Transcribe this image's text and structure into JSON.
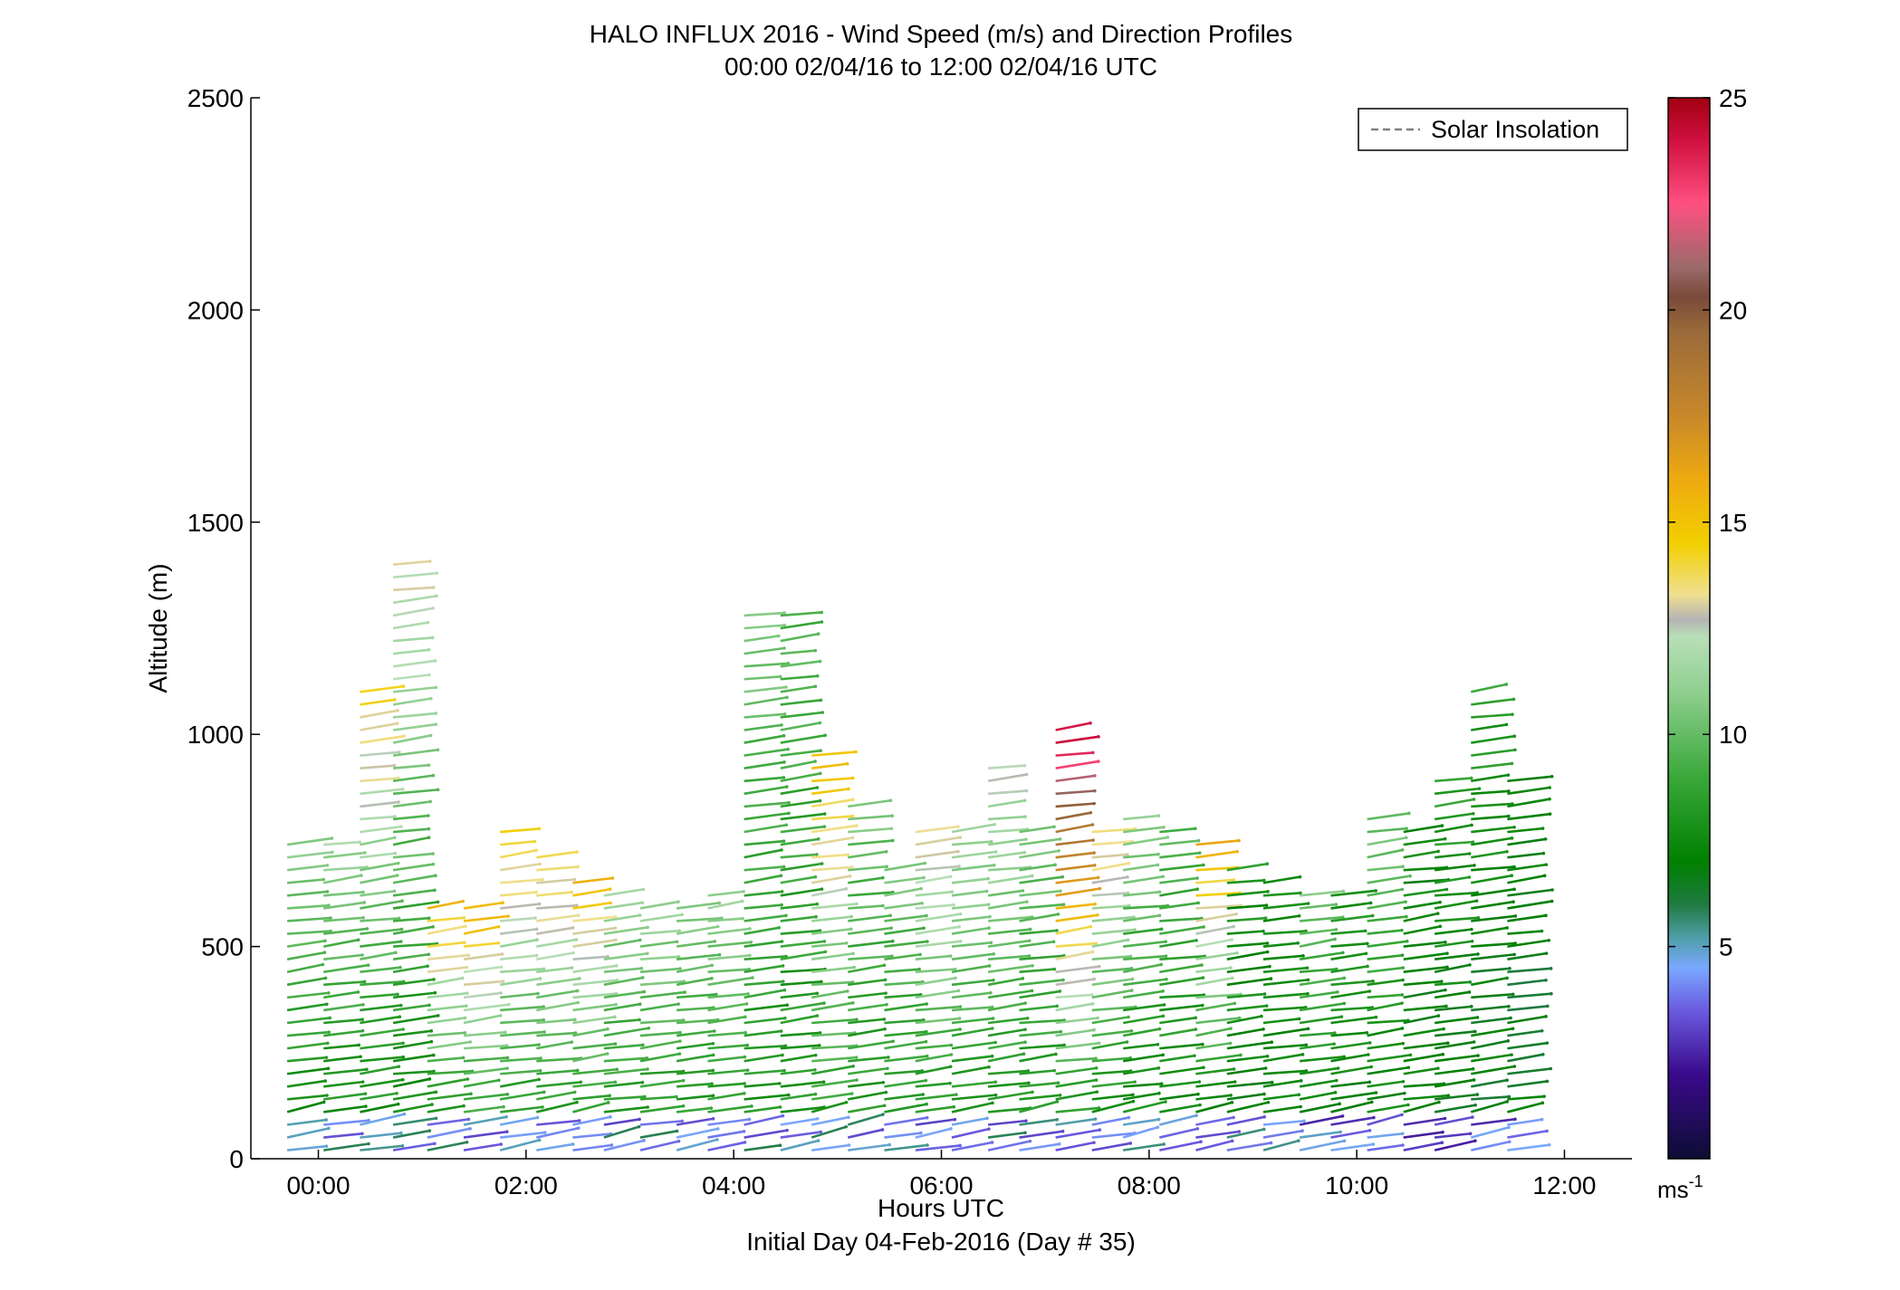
{
  "chart_data": {
    "type": "vector-profile",
    "title": "HALO INFLUX 2016 - Wind Speed (m/s) and Direction Profiles",
    "subtitle": "00:00 02/04/16 to 12:00 02/04/16  UTC",
    "xlabel": "Hours UTC",
    "xlabel2": "Initial Day 04-Feb-2016 (Day # 35)",
    "ylabel": "Altitude (m)",
    "xlim": [
      -0.65,
      12.65
    ],
    "ylim": [
      0,
      2500
    ],
    "x_ticks": [
      {
        "value": 0,
        "label": "00:00"
      },
      {
        "value": 2,
        "label": "02:00"
      },
      {
        "value": 4,
        "label": "04:00"
      },
      {
        "value": 6,
        "label": "06:00"
      },
      {
        "value": 8,
        "label": "08:00"
      },
      {
        "value": 10,
        "label": "10:00"
      },
      {
        "value": 12,
        "label": "12:00"
      }
    ],
    "y_ticks": [
      {
        "value": 0,
        "label": "0"
      },
      {
        "value": 500,
        "label": "500"
      },
      {
        "value": 1000,
        "label": "1000"
      },
      {
        "value": 1500,
        "label": "1500"
      },
      {
        "value": 2000,
        "label": "2000"
      },
      {
        "value": 2500,
        "label": "2500"
      }
    ],
    "legend": {
      "label": "Solar Insolation",
      "position": "top-right",
      "line_color": "#808080",
      "line_style": "dashed"
    },
    "colorbar": {
      "range": [
        0,
        25
      ],
      "unit_label": "ms",
      "unit_exponent": "-1",
      "ticks": [
        {
          "value": 5,
          "label": "5"
        },
        {
          "value": 10,
          "label": "10"
        },
        {
          "value": 15,
          "label": "15"
        },
        {
          "value": 20,
          "label": "20"
        },
        {
          "value": 25,
          "label": "25"
        }
      ],
      "stops": [
        {
          "v": 0,
          "c": "#0d0d33"
        },
        {
          "v": 2,
          "c": "#3a0a8c"
        },
        {
          "v": 3.5,
          "c": "#6a5be0"
        },
        {
          "v": 4.5,
          "c": "#7aa8ff"
        },
        {
          "v": 5.2,
          "c": "#4f9ea8"
        },
        {
          "v": 6,
          "c": "#1f7a40"
        },
        {
          "v": 7,
          "c": "#008000"
        },
        {
          "v": 9,
          "c": "#3aa83a"
        },
        {
          "v": 11,
          "c": "#8fcf8f"
        },
        {
          "v": 12.3,
          "c": "#b8dfb8"
        },
        {
          "v": 12.7,
          "c": "#b4b4b4"
        },
        {
          "v": 13.3,
          "c": "#f0e090"
        },
        {
          "v": 14.5,
          "c": "#f2cf00"
        },
        {
          "v": 16,
          "c": "#eeaa10"
        },
        {
          "v": 17.5,
          "c": "#c8882a"
        },
        {
          "v": 19.5,
          "c": "#9a6a3a"
        },
        {
          "v": 20.3,
          "c": "#7a4a3a"
        },
        {
          "v": 21,
          "c": "#9a6a6a"
        },
        {
          "v": 22.5,
          "c": "#ff5080"
        },
        {
          "v": 24,
          "c": "#d01040"
        },
        {
          "v": 25,
          "c": "#a00010"
        }
      ]
    },
    "profiles": [
      {
        "hour": -0.3,
        "top": 740,
        "base_speed": 7.5,
        "upper_speed": 11
      },
      {
        "hour": 0.05,
        "top": 760,
        "base_speed": 7.5,
        "upper_speed": 11.5
      },
      {
        "hour": 0.4,
        "top": 1120,
        "base_speed": 7.5,
        "upper_speed": 14.5
      },
      {
        "hour": 0.72,
        "top": 1410,
        "base_speed": 7.5,
        "upper_speed": 13
      },
      {
        "hour": 1.05,
        "top": 590,
        "base_speed": 8,
        "upper_speed": 15
      },
      {
        "hour": 1.4,
        "top": 590,
        "base_speed": 8,
        "upper_speed": 15.5
      },
      {
        "hour": 1.75,
        "top": 790,
        "base_speed": 8,
        "upper_speed": 15
      },
      {
        "hour": 2.1,
        "top": 720,
        "base_speed": 8,
        "upper_speed": 14.5
      },
      {
        "hour": 2.45,
        "top": 660,
        "base_speed": 8,
        "upper_speed": 15.5
      },
      {
        "hour": 2.75,
        "top": 620,
        "base_speed": 8,
        "upper_speed": 11.5
      },
      {
        "hour": 3.1,
        "top": 590,
        "base_speed": 8,
        "upper_speed": 11.5
      },
      {
        "hour": 3.45,
        "top": 590,
        "base_speed": 8,
        "upper_speed": 11
      },
      {
        "hour": 3.75,
        "top": 620,
        "base_speed": 8,
        "upper_speed": 11.5
      },
      {
        "hour": 4.1,
        "top": 1290,
        "base_speed": 8,
        "upper_speed": 10.5
      },
      {
        "hour": 4.45,
        "top": 1290,
        "base_speed": 8,
        "upper_speed": 9.5
      },
      {
        "hour": 4.75,
        "top": 950,
        "base_speed": 8,
        "upper_speed": 15.5
      },
      {
        "hour": 5.1,
        "top": 840,
        "base_speed": 8,
        "upper_speed": 10.5
      },
      {
        "hour": 5.45,
        "top": 700,
        "base_speed": 8,
        "upper_speed": 10.5
      },
      {
        "hour": 5.75,
        "top": 790,
        "base_speed": 8,
        "upper_speed": 14
      },
      {
        "hour": 6.1,
        "top": 790,
        "base_speed": 8,
        "upper_speed": 12
      },
      {
        "hour": 6.45,
        "top": 920,
        "base_speed": 8,
        "upper_speed": 12.5
      },
      {
        "hour": 6.75,
        "top": 790,
        "base_speed": 8,
        "upper_speed": 10.5
      },
      {
        "hour": 7.1,
        "top": 1010,
        "base_speed": 7.5,
        "upper_speed": 24.5
      },
      {
        "hour": 7.45,
        "top": 790,
        "base_speed": 7.5,
        "upper_speed": 14
      },
      {
        "hour": 7.75,
        "top": 820,
        "base_speed": 7.5,
        "upper_speed": 11
      },
      {
        "hour": 8.1,
        "top": 790,
        "base_speed": 7.5,
        "upper_speed": 9.5
      },
      {
        "hour": 8.45,
        "top": 760,
        "base_speed": 7,
        "upper_speed": 16.5
      },
      {
        "hour": 8.75,
        "top": 700,
        "base_speed": 7,
        "upper_speed": 8
      },
      {
        "hour": 9.1,
        "top": 660,
        "base_speed": 7,
        "upper_speed": 7.5
      },
      {
        "hour": 9.45,
        "top": 630,
        "base_speed": 7,
        "upper_speed": 10.5
      },
      {
        "hour": 9.75,
        "top": 640,
        "base_speed": 7,
        "upper_speed": 8
      },
      {
        "hour": 10.1,
        "top": 820,
        "base_speed": 7,
        "upper_speed": 10.5
      },
      {
        "hour": 10.45,
        "top": 790,
        "base_speed": 7,
        "upper_speed": 7.5
      },
      {
        "hour": 10.75,
        "top": 900,
        "base_speed": 6.5,
        "upper_speed": 8.5
      },
      {
        "hour": 11.1,
        "top": 1120,
        "base_speed": 6.5,
        "upper_speed": 8.5
      },
      {
        "hour": 11.45,
        "top": 910,
        "base_speed": 6.5,
        "upper_speed": 7
      }
    ]
  }
}
